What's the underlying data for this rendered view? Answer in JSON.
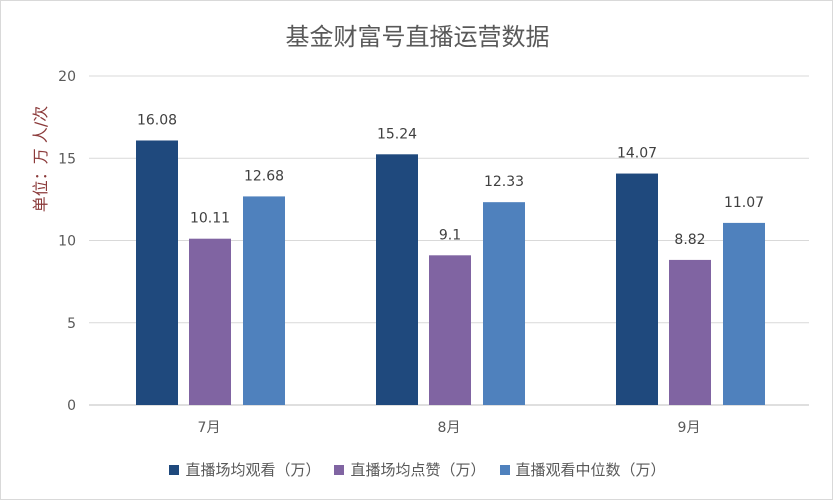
{
  "chart_data": {
    "type": "bar",
    "title": "基金财富号直播运营数据",
    "ylabel": "单位：万  人/次",
    "categories": [
      "7月",
      "8月",
      "9月"
    ],
    "ylim": [
      0,
      20
    ],
    "yticks": [
      0,
      5,
      10,
      15,
      20
    ],
    "grid": true,
    "legend_position": "bottom",
    "series": [
      {
        "name": "直播场均观看（万）",
        "values": [
          16.08,
          15.24,
          14.07
        ],
        "color": "#1f497d"
      },
      {
        "name": "直播场均点赞（万）",
        "values": [
          10.11,
          9.1,
          8.82
        ],
        "color": "#8064a2"
      },
      {
        "name": "直播观看中位数（万）",
        "values": [
          12.68,
          12.33,
          11.07
        ],
        "color": "#4f81bd"
      }
    ]
  }
}
